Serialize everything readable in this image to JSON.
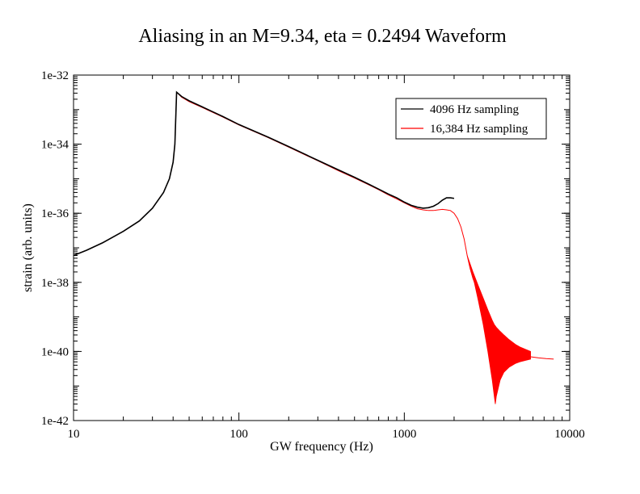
{
  "chart_data": {
    "type": "line",
    "title": "Aliasing in an M=9.34, eta = 0.2494 Waveform",
    "xlabel": "GW frequency (Hz)",
    "ylabel": "strain (arb. units)",
    "x_scale": "log",
    "y_scale": "log",
    "xlim": [
      10,
      10000
    ],
    "ylim": [
      1e-42,
      1e-32
    ],
    "x_ticks": [
      10,
      100,
      1000,
      10000
    ],
    "x_tick_labels": [
      "10",
      "100",
      "1000",
      "10000"
    ],
    "y_ticks": [
      1e-42,
      1e-40,
      1e-38,
      1e-36,
      1e-34,
      1e-32
    ],
    "y_tick_labels": [
      "1e-42",
      "1e-40",
      "1e-38",
      "1e-36",
      "1e-34",
      "1e-32"
    ],
    "grid": false,
    "legend_position": "top-right",
    "series": [
      {
        "name": "4096 Hz sampling",
        "color": "#000000",
        "x": [
          10,
          12,
          15,
          20,
          25,
          30,
          35,
          38,
          40,
          41,
          42,
          45,
          50,
          60,
          70,
          80,
          100,
          150,
          200,
          300,
          400,
          500,
          600,
          700,
          800,
          900,
          1000,
          1100,
          1200,
          1300,
          1400,
          1500,
          1600,
          1700,
          1800,
          1900,
          2000
        ],
        "y": [
          6e-38,
          8.5e-38,
          1.4e-37,
          3e-37,
          6e-37,
          1.4e-36,
          4e-36,
          1e-35,
          3e-35,
          1e-34,
          3.2e-33,
          2.4e-33,
          1.8e-33,
          1.2e-33,
          8.5e-34,
          6.3e-34,
          3.7e-34,
          1.6e-34,
          8.5e-35,
          3.4e-35,
          1.8e-35,
          1.1e-35,
          7.2e-36,
          5e-36,
          3.6e-36,
          2.8e-36,
          2.1e-36,
          1.7e-36,
          1.5e-36,
          1.4e-36,
          1.45e-36,
          1.6e-36,
          1.9e-36,
          2.4e-36,
          2.8e-36,
          2.8e-36,
          2.7e-36
        ]
      },
      {
        "name": "16,384 Hz sampling",
        "color": "#ff0000",
        "x": [
          10,
          12,
          15,
          20,
          25,
          30,
          35,
          38,
          40,
          41,
          42,
          45,
          50,
          60,
          70,
          80,
          100,
          150,
          200,
          300,
          400,
          500,
          600,
          700,
          800,
          900,
          1000,
          1100,
          1200,
          1300,
          1400,
          1500,
          1600,
          1700,
          1800,
          1900,
          2000,
          2100,
          2200,
          2300,
          2400,
          2500,
          2600,
          2800,
          3000,
          3200,
          3400,
          3500,
          3600,
          3700,
          3800,
          4000,
          4300,
          4700,
          5000,
          5400,
          5800,
          6500,
          7200,
          8000
        ],
        "y": [
          6e-38,
          8.5e-38,
          1.4e-37,
          3e-37,
          6e-37,
          1.4e-36,
          4e-36,
          1e-35,
          3e-35,
          1e-34,
          3.2e-33,
          2.3e-33,
          1.7e-33,
          1.15e-33,
          8.2e-34,
          6.1e-34,
          3.6e-34,
          1.55e-34,
          8.2e-35,
          3.3e-35,
          1.7e-35,
          1.05e-35,
          6.9e-36,
          4.8e-36,
          3.4e-36,
          2.6e-36,
          2e-36,
          1.6e-36,
          1.35e-36,
          1.25e-36,
          1.2e-36,
          1.2e-36,
          1.25e-36,
          1.3e-36,
          1.25e-36,
          1.2e-36,
          1e-36,
          7e-37,
          4e-37,
          1.8e-37,
          6e-38,
          2.5e-38,
          1.3e-38,
          5e-39,
          2e-39,
          8e-40,
          3e-40,
          2e-40,
          1.5e-40,
          1.2e-40,
          1.1e-40,
          1e-40,
          9e-41,
          8.5e-41,
          8e-41,
          7.5e-41,
          7e-41,
          6.5e-41,
          6.2e-41,
          6e-41
        ],
        "aliasing_band": {
          "x": [
            2400,
            2600,
            2800,
            3000,
            3200,
            3400,
            3500,
            3550,
            3600,
            3800,
            4000,
            4300,
            4700,
            5000,
            5400,
            5800
          ],
          "upper": [
            6e-38,
            2e-38,
            8e-39,
            3.5e-39,
            1.6e-39,
            8e-40,
            6e-40,
            5.5e-40,
            5e-40,
            3.8e-40,
            3e-40,
            2.2e-40,
            1.6e-40,
            1.35e-40,
            1.15e-40,
            1e-40
          ],
          "lower": [
            6e-38,
            1.5e-38,
            3e-39,
            6e-40,
            1e-40,
            1.5e-41,
            5e-42,
            3e-42,
            5e-42,
            1.5e-41,
            2.5e-41,
            3.5e-41,
            4.5e-41,
            5e-41,
            5.5e-41,
            6e-41
          ]
        }
      }
    ]
  }
}
